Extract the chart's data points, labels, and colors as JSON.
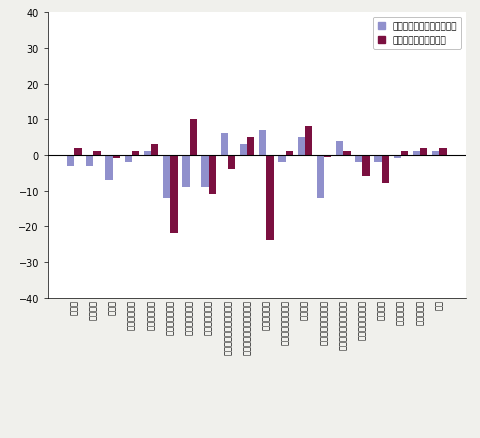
{
  "categories": [
    "近工業",
    "製造工業",
    "鉄銖業",
    "非鉄金属工業",
    "金属製品工業",
    "はん用機械工業",
    "生産用機械工業",
    "業務用機械工業",
    "電子部品・デバイス工業",
    "電気・情報通信機材工業",
    "輸送機械工業",
    "窯業・土石製品工業",
    "化学工業",
    "石油・石炭製品工業",
    "プラスチック製品工業",
    "镃・鍛加工品工業",
    "継羅工業",
    "食料品工業",
    "その他工業",
    "紅業"
  ],
  "mom": [
    -3,
    -3,
    -7,
    -2,
    1,
    -12,
    -9,
    -9,
    6,
    3,
    7,
    -2,
    5,
    -12,
    4,
    -2,
    -2,
    -1,
    1,
    1
  ],
  "yoy": [
    2,
    1,
    -1,
    1,
    3,
    -22,
    10,
    -11,
    -4,
    5,
    -24,
    1,
    8,
    -0.5,
    1,
    -6,
    -8,
    1,
    2,
    2
  ],
  "mom_color": "#9090cc",
  "yoy_color": "#7b1040",
  "legend_mom": "前月比（季節調整済指数）",
  "legend_yoy": "前年同月比（原指数）",
  "ylim": [
    -40,
    40
  ],
  "yticks": [
    -40,
    -30,
    -20,
    -10,
    0,
    10,
    20,
    30,
    40
  ],
  "background_color": "#f0f0ec",
  "plot_background": "#ffffff",
  "bar_width": 0.38
}
